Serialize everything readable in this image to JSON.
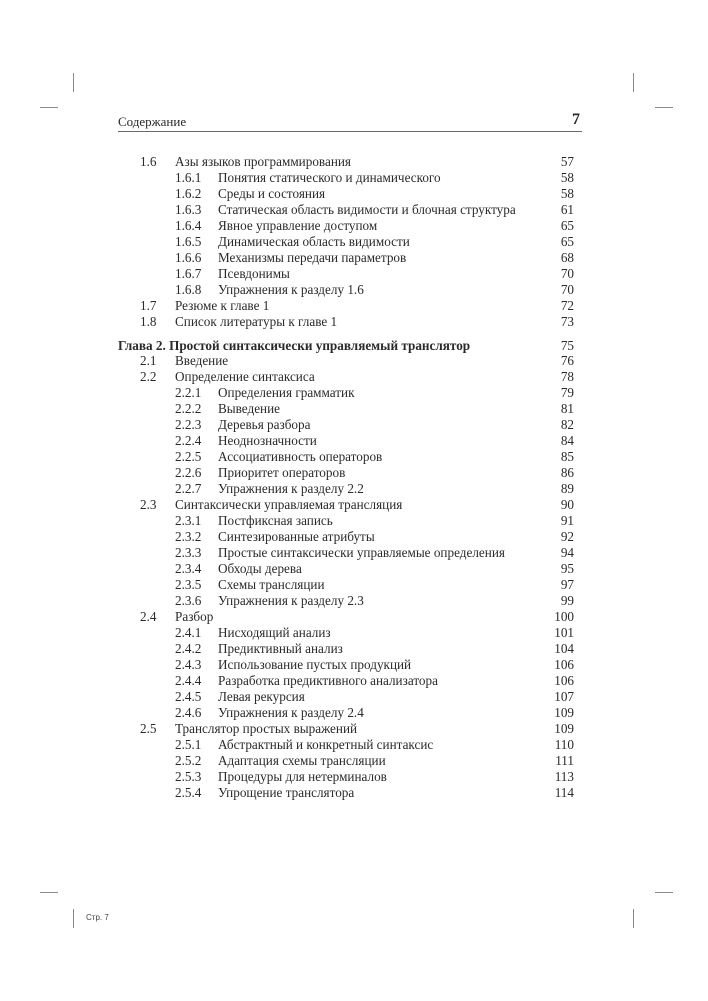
{
  "header": {
    "title": "Содержание",
    "page_number": "7"
  },
  "toc": [
    {
      "level": 1,
      "num": "1.6",
      "title": "Азы языков программирования",
      "page": "57"
    },
    {
      "level": 2,
      "num": "1.6.1",
      "title": "Понятия статического и динамического",
      "page": "58"
    },
    {
      "level": 2,
      "num": "1.6.2",
      "title": "Среды и состояния",
      "page": "58"
    },
    {
      "level": 2,
      "num": "1.6.3",
      "title": "Статическая область видимости и блочная структура",
      "page": "61"
    },
    {
      "level": 2,
      "num": "1.6.4",
      "title": "Явное управление доступом",
      "page": "65"
    },
    {
      "level": 2,
      "num": "1.6.5",
      "title": "Динамическая область видимости",
      "page": "65"
    },
    {
      "level": 2,
      "num": "1.6.6",
      "title": "Механизмы передачи параметров",
      "page": "68"
    },
    {
      "level": 2,
      "num": "1.6.7",
      "title": "Псевдонимы",
      "page": "70"
    },
    {
      "level": 2,
      "num": "1.6.8",
      "title": "Упражнения к разделу 1.6",
      "page": "70"
    },
    {
      "level": 1,
      "num": "1.7",
      "title": "Резюме к главе 1",
      "page": "72"
    },
    {
      "level": 1,
      "num": "1.8",
      "title": "Список литературы к главе 1",
      "page": "73"
    },
    {
      "level": 0,
      "num": "",
      "title": "Глава 2. Простой синтаксически управляемый транслятор",
      "page": "75"
    },
    {
      "level": 1,
      "num": "2.1",
      "title": "Введение",
      "page": "76"
    },
    {
      "level": 1,
      "num": "2.2",
      "title": "Определение синтаксиса",
      "page": "78"
    },
    {
      "level": 2,
      "num": "2.2.1",
      "title": "Определения грамматик",
      "page": "79"
    },
    {
      "level": 2,
      "num": "2.2.2",
      "title": "Выведение",
      "page": "81"
    },
    {
      "level": 2,
      "num": "2.2.3",
      "title": "Деревья разбора",
      "page": "82"
    },
    {
      "level": 2,
      "num": "2.2.4",
      "title": "Неоднозначности",
      "page": "84"
    },
    {
      "level": 2,
      "num": "2.2.5",
      "title": "Ассоциативность операторов",
      "page": "85"
    },
    {
      "level": 2,
      "num": "2.2.6",
      "title": "Приоритет операторов",
      "page": "86"
    },
    {
      "level": 2,
      "num": "2.2.7",
      "title": "Упражнения к разделу 2.2",
      "page": "89"
    },
    {
      "level": 1,
      "num": "2.3",
      "title": "Синтаксически управляемая трансляция",
      "page": "90"
    },
    {
      "level": 2,
      "num": "2.3.1",
      "title": "Постфиксная запись",
      "page": "91"
    },
    {
      "level": 2,
      "num": "2.3.2",
      "title": "Синтезированные атрибуты",
      "page": "92"
    },
    {
      "level": 2,
      "num": "2.3.3",
      "title": "Простые синтаксически управляемые определения",
      "page": "94"
    },
    {
      "level": 2,
      "num": "2.3.4",
      "title": "Обходы дерева",
      "page": "95"
    },
    {
      "level": 2,
      "num": "2.3.5",
      "title": "Схемы трансляции",
      "page": "97"
    },
    {
      "level": 2,
      "num": "2.3.6",
      "title": "Упражнения к разделу 2.3",
      "page": "99"
    },
    {
      "level": 1,
      "num": "2.4",
      "title": "Разбор",
      "page": "100"
    },
    {
      "level": 2,
      "num": "2.4.1",
      "title": "Нисходящий анализ",
      "page": "101"
    },
    {
      "level": 2,
      "num": "2.4.2",
      "title": "Предиктивный анализ",
      "page": "104"
    },
    {
      "level": 2,
      "num": "2.4.3",
      "title": "Использование пустых продукций",
      "page": "106"
    },
    {
      "level": 2,
      "num": "2.4.4",
      "title": "Разработка предиктивного анализатора",
      "page": "106"
    },
    {
      "level": 2,
      "num": "2.4.5",
      "title": "Левая рекурсия",
      "page": "107"
    },
    {
      "level": 2,
      "num": "2.4.6",
      "title": "Упражнения к разделу 2.4",
      "page": "109"
    },
    {
      "level": 1,
      "num": "2.5",
      "title": "Транслятор простых выражений",
      "page": "109"
    },
    {
      "level": 2,
      "num": "2.5.1",
      "title": "Абстрактный и конкретный синтаксис",
      "page": "110"
    },
    {
      "level": 2,
      "num": "2.5.2",
      "title": "Адаптация схемы трансляции",
      "page": "111"
    },
    {
      "level": 2,
      "num": "2.5.3",
      "title": "Процедуры для нетерминалов",
      "page": "113"
    },
    {
      "level": 2,
      "num": "2.5.4",
      "title": "Упрощение транслятора",
      "page": "114"
    }
  ],
  "footer": {
    "text": "Стр. 7"
  }
}
